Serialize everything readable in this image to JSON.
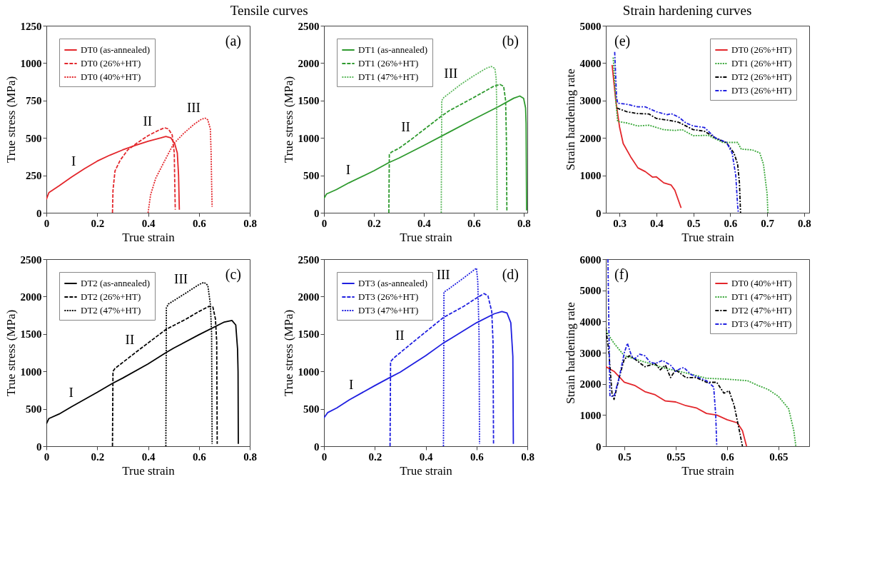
{
  "chart_data": [
    {
      "type": "line",
      "title": "Tensile curves",
      "xlabel": "True strain",
      "ylabel": "True stress (MPa)",
      "xlim": [
        0,
        0.8
      ],
      "xticks": [
        0,
        0.2,
        0.4,
        0.6,
        0.8
      ],
      "ylim": [
        0,
        1250
      ],
      "yticks": [
        0,
        250,
        500,
        750,
        1000,
        1250
      ],
      "legend": "top left",
      "annotations": [
        "(a)",
        {
          "text": "I",
          "x": 0.13,
          "y": 273
        },
        {
          "text": "II",
          "x": 0.43,
          "y": 540
        },
        {
          "text": "III",
          "x": 0.62,
          "y": 628
        }
      ],
      "series": [
        {
          "name": "DT0 (as-annealed)",
          "color": "#e3262b",
          "line_style": "solid",
          "x": [
            0,
            0.01,
            0.05,
            0.1,
            0.15,
            0.2,
            0.25,
            0.3,
            0.35,
            0.4,
            0.45,
            0.47,
            0.49,
            0.505,
            0.515,
            0.52,
            0.523
          ],
          "values": [
            90,
            135,
            180,
            240,
            295,
            345,
            385,
            420,
            450,
            478,
            500,
            510,
            500,
            460,
            400,
            250,
            20
          ]
        },
        {
          "name": "DT0 (26%+HT)",
          "color": "#e3262b",
          "line_style": "dashed",
          "x": [
            0.26,
            0.262,
            0.27,
            0.29,
            0.32,
            0.36,
            0.4,
            0.44,
            0.465,
            0.48,
            0.495,
            0.503,
            0.505,
            0.507
          ],
          "values": [
            0,
            150,
            280,
            350,
            420,
            470,
            515,
            550,
            568,
            560,
            520,
            400,
            200,
            20
          ]
        },
        {
          "name": "DT0 (40%+HT)",
          "color": "#e3262b",
          "line_style": "dotted",
          "x": [
            0.4,
            0.41,
            0.43,
            0.46,
            0.5,
            0.54,
            0.58,
            0.61,
            0.625,
            0.635,
            0.645,
            0.648,
            0.65,
            0.652
          ],
          "values": [
            0,
            120,
            230,
            330,
            460,
            530,
            590,
            625,
            632,
            620,
            560,
            400,
            200,
            40
          ]
        }
      ]
    },
    {
      "type": "line",
      "xlabel": "True strain",
      "ylabel": "True stress (MPa)",
      "xlim": [
        0,
        0.815
      ],
      "xticks": [
        0,
        0.2,
        0.4,
        0.6,
        0.8
      ],
      "ylim": [
        0,
        2500
      ],
      "yticks": [
        0,
        500,
        1000,
        1500,
        2000,
        2500
      ],
      "legend": "top left",
      "annotations": [
        "(b)",
        {
          "text": "I",
          "x": 0.12,
          "y": 432
        },
        {
          "text": "II",
          "x": 0.36,
          "y": 1006
        },
        {
          "text": "III",
          "x": 0.55,
          "y": 1720
        }
      ],
      "series": [
        {
          "name": "DT1 (as-annealed)",
          "color": "#2e9a2e",
          "line_style": "solid",
          "x": [
            0,
            0.01,
            0.05,
            0.1,
            0.2,
            0.26,
            0.3,
            0.4,
            0.5,
            0.6,
            0.7,
            0.76,
            0.785,
            0.8,
            0.808,
            0.81,
            0.812
          ],
          "values": [
            190,
            250,
            310,
            400,
            560,
            670,
            730,
            900,
            1075,
            1250,
            1420,
            1530,
            1560,
            1530,
            1400,
            1200,
            30
          ]
        },
        {
          "name": "DT1 (26%+HT)",
          "color": "#2e9a2e",
          "line_style": "dashed",
          "x": [
            0.26,
            0.262,
            0.27,
            0.3,
            0.35,
            0.4,
            0.47,
            0.5,
            0.6,
            0.68,
            0.705,
            0.72,
            0.728,
            0.731,
            0.733
          ],
          "values": [
            0,
            780,
            810,
            860,
            980,
            1110,
            1290,
            1360,
            1540,
            1690,
            1715,
            1690,
            1500,
            1000,
            30
          ]
        },
        {
          "name": "DT1 (47%+HT)",
          "color": "#5cb85c",
          "line_style": "dotted",
          "x": [
            0.47,
            0.472,
            0.48,
            0.55,
            0.6,
            0.65,
            0.67,
            0.685,
            0.69,
            0.692,
            0.694
          ],
          "values": [
            0,
            1500,
            1540,
            1720,
            1830,
            1930,
            1955,
            1930,
            1800,
            1500,
            30
          ]
        }
      ]
    },
    {
      "type": "line",
      "xlabel": "True strain",
      "ylabel": "True stress (MPa)",
      "xlim": [
        0,
        0.8
      ],
      "xticks": [
        0,
        0.2,
        0.4,
        0.6,
        0.8
      ],
      "ylim": [
        0,
        2500
      ],
      "yticks": [
        0,
        500,
        1000,
        1500,
        2000,
        2500
      ],
      "legend": "top left",
      "annotations": [
        "(c)",
        {
          "text": "I",
          "x": 0.12,
          "y": 568
        },
        {
          "text": "II",
          "x": 0.36,
          "y": 1276
        },
        {
          "text": "III",
          "x": 0.57,
          "y": 2094
        }
      ],
      "series": [
        {
          "name": "DT2 (as-annealed)",
          "color": "#000000",
          "line_style": "solid",
          "x": [
            0,
            0.01,
            0.05,
            0.1,
            0.2,
            0.26,
            0.3,
            0.4,
            0.47,
            0.5,
            0.6,
            0.7,
            0.73,
            0.745,
            0.752,
            0.754,
            0.755
          ],
          "values": [
            300,
            370,
            430,
            530,
            720,
            840,
            910,
            1100,
            1250,
            1310,
            1490,
            1660,
            1680,
            1620,
            1300,
            1000,
            30
          ]
        },
        {
          "name": "DT2 (26%+HT)",
          "color": "#000000",
          "line_style": "dashed",
          "x": [
            0.26,
            0.262,
            0.27,
            0.35,
            0.47,
            0.55,
            0.6,
            0.64,
            0.655,
            0.665,
            0.67,
            0.672
          ],
          "values": [
            0,
            1000,
            1040,
            1250,
            1560,
            1700,
            1800,
            1870,
            1860,
            1700,
            1400,
            30
          ]
        },
        {
          "name": "DT2 (47%+HT)",
          "color": "#000000",
          "line_style": "dotted",
          "x": [
            0.47,
            0.472,
            0.48,
            0.55,
            0.6,
            0.62,
            0.635,
            0.645,
            0.65,
            0.652
          ],
          "values": [
            0,
            1850,
            1900,
            2050,
            2160,
            2190,
            2150,
            1900,
            1500,
            30
          ]
        }
      ]
    },
    {
      "type": "line",
      "xlabel": "True strain",
      "ylabel": "True stress (MPa)",
      "xlim": [
        0,
        0.8
      ],
      "xticks": [
        0,
        0.2,
        0.4,
        0.6,
        0.8
      ],
      "ylim": [
        0,
        2500
      ],
      "yticks": [
        0,
        500,
        1000,
        1500,
        2000,
        2500
      ],
      "legend": "top left",
      "annotations": [
        "(d)",
        {
          "text": "I",
          "x": 0.13,
          "y": 677
        },
        {
          "text": "II",
          "x": 0.33,
          "y": 1334
        },
        {
          "text": "III",
          "x": 0.51,
          "y": 2150
        }
      ],
      "series": [
        {
          "name": "DT3 (as-annealed)",
          "color": "#1f1fe0",
          "line_style": "solid",
          "x": [
            0,
            0.015,
            0.05,
            0.1,
            0.2,
            0.26,
            0.3,
            0.4,
            0.47,
            0.5,
            0.6,
            0.67,
            0.7,
            0.72,
            0.735,
            0.743,
            0.745
          ],
          "values": [
            380,
            450,
            510,
            620,
            810,
            920,
            990,
            1210,
            1380,
            1440,
            1650,
            1770,
            1800,
            1780,
            1650,
            1200,
            30
          ]
        },
        {
          "name": "DT3 (26%+HT)",
          "color": "#1f1fe0",
          "line_style": "dashed",
          "x": [
            0.26,
            0.262,
            0.275,
            0.35,
            0.47,
            0.55,
            0.6,
            0.63,
            0.645,
            0.66,
            0.665,
            0.667
          ],
          "values": [
            0,
            1130,
            1180,
            1390,
            1720,
            1870,
            1980,
            2040,
            2010,
            1800,
            1400,
            30
          ]
        },
        {
          "name": "DT3 (47%+HT)",
          "color": "#1f1fe0",
          "line_style": "dotted",
          "x": [
            0.47,
            0.472,
            0.49,
            0.55,
            0.6,
            0.605,
            0.61,
            0.612
          ],
          "values": [
            0,
            2060,
            2100,
            2250,
            2380,
            2200,
            1500,
            30
          ]
        }
      ]
    },
    {
      "type": "line",
      "title": "Strain hardening curves",
      "xlabel": "True strain",
      "ylabel": "Strain hardening rate",
      "xlim": [
        0.263,
        0.814
      ],
      "xticks": [
        0.3,
        0.4,
        0.5,
        0.6,
        0.7,
        0.8
      ],
      "ylim": [
        0,
        5000
      ],
      "yticks": [
        0,
        1000,
        2000,
        3000,
        4000,
        5000
      ],
      "legend": "top right",
      "annotations": [
        "(e)"
      ],
      "series": [
        {
          "name": "DT0 (26%+HT)",
          "color": "#e3262b",
          "line_style": "solid",
          "x": [
            0.28,
            0.29,
            0.3,
            0.31,
            0.33,
            0.35,
            0.37,
            0.39,
            0.4,
            0.42,
            0.44,
            0.45,
            0.467
          ],
          "values": [
            3950,
            3000,
            2300,
            1850,
            1500,
            1200,
            1100,
            950,
            960,
            800,
            740,
            600,
            130
          ]
        },
        {
          "name": "DT1 (26%+HT)",
          "color": "#3aa83a",
          "line_style": "dotted",
          "x": [
            0.283,
            0.29,
            0.295,
            0.32,
            0.35,
            0.38,
            0.42,
            0.45,
            0.47,
            0.5,
            0.54,
            0.58,
            0.62,
            0.63,
            0.66,
            0.68,
            0.69,
            0.7,
            0.702
          ],
          "values": [
            4150,
            3000,
            2440,
            2400,
            2320,
            2340,
            2220,
            2200,
            2220,
            2060,
            2070,
            1880,
            1880,
            1700,
            1680,
            1600,
            1300,
            500,
            0
          ]
        },
        {
          "name": "DT2 (26%+HT)",
          "color": "#000000",
          "line_style": "dashdot",
          "x": [
            0.293,
            0.32,
            0.35,
            0.38,
            0.4,
            0.44,
            0.46,
            0.5,
            0.53,
            0.56,
            0.59,
            0.61,
            0.62,
            0.625,
            0.628
          ],
          "values": [
            2800,
            2700,
            2650,
            2640,
            2520,
            2460,
            2420,
            2220,
            2180,
            2000,
            1870,
            1600,
            1300,
            800,
            0
          ]
        },
        {
          "name": "DT3 (26%+HT)",
          "color": "#1f1fe0",
          "line_style": "dashdot",
          "x": [
            0.287,
            0.292,
            0.295,
            0.32,
            0.35,
            0.37,
            0.4,
            0.43,
            0.44,
            0.46,
            0.48,
            0.5,
            0.53,
            0.56,
            0.59,
            0.605,
            0.615,
            0.62,
            0.622
          ],
          "values": [
            4300,
            3100,
            2930,
            2900,
            2830,
            2830,
            2700,
            2620,
            2650,
            2560,
            2400,
            2320,
            2280,
            2000,
            1880,
            1600,
            1000,
            200,
            0
          ]
        }
      ]
    },
    {
      "type": "line",
      "xlabel": "True strain",
      "ylabel": "Strain hardening rate",
      "xlim": [
        0.482,
        0.68
      ],
      "xticks": [
        0.5,
        0.55,
        0.6,
        0.65
      ],
      "ylim": [
        0,
        6000
      ],
      "yticks": [
        0,
        1000,
        2000,
        3000,
        4000,
        5000,
        6000
      ],
      "legend": "top right",
      "annotations": [
        "(f)"
      ],
      "series": [
        {
          "name": "DT0 (40%+HT)",
          "color": "#e3262b",
          "line_style": "solid",
          "x": [
            0.482,
            0.49,
            0.5,
            0.51,
            0.52,
            0.53,
            0.54,
            0.55,
            0.56,
            0.57,
            0.58,
            0.59,
            0.6,
            0.61,
            0.615,
            0.619
          ],
          "values": [
            2550,
            2400,
            2050,
            1950,
            1750,
            1650,
            1450,
            1420,
            1300,
            1230,
            1050,
            1000,
            850,
            750,
            500,
            0
          ]
        },
        {
          "name": "DT1 (47%+HT)",
          "color": "#3aa83a",
          "line_style": "dotted",
          "x": [
            0.482,
            0.49,
            0.5,
            0.52,
            0.54,
            0.56,
            0.58,
            0.6,
            0.62,
            0.63,
            0.64,
            0.65,
            0.66,
            0.665,
            0.667
          ],
          "values": [
            3700,
            3300,
            2900,
            2700,
            2500,
            2350,
            2180,
            2150,
            2100,
            1950,
            1820,
            1600,
            1200,
            500,
            0
          ]
        },
        {
          "name": "DT2 (47%+HT)",
          "color": "#000000",
          "line_style": "dashdot",
          "x": [
            0.482,
            0.485,
            0.488,
            0.49,
            0.495,
            0.5,
            0.505,
            0.51,
            0.52,
            0.53,
            0.535,
            0.54,
            0.545,
            0.55,
            0.56,
            0.57,
            0.58,
            0.59,
            0.597,
            0.602,
            0.607,
            0.612,
            0.615
          ],
          "values": [
            3800,
            3000,
            1700,
            1500,
            2200,
            2800,
            2900,
            2800,
            2550,
            2650,
            2450,
            2600,
            2200,
            2450,
            2200,
            2200,
            2050,
            2050,
            1700,
            1780,
            1300,
            500,
            0
          ]
        },
        {
          "name": "DT3 (47%+HT)",
          "color": "#1f1fe0",
          "line_style": "dashdot",
          "x": [
            0.484,
            0.486,
            0.49,
            0.495,
            0.5,
            0.503,
            0.507,
            0.51,
            0.515,
            0.52,
            0.525,
            0.53,
            0.537,
            0.545,
            0.55,
            0.555,
            0.558,
            0.565,
            0.58,
            0.587,
            0.589,
            0.59
          ],
          "values": [
            6000,
            1600,
            1600,
            2200,
            3000,
            3300,
            2900,
            2800,
            2950,
            2900,
            2700,
            2650,
            2750,
            2600,
            2400,
            2500,
            2520,
            2300,
            2100,
            1900,
            1000,
            0
          ]
        }
      ]
    }
  ]
}
